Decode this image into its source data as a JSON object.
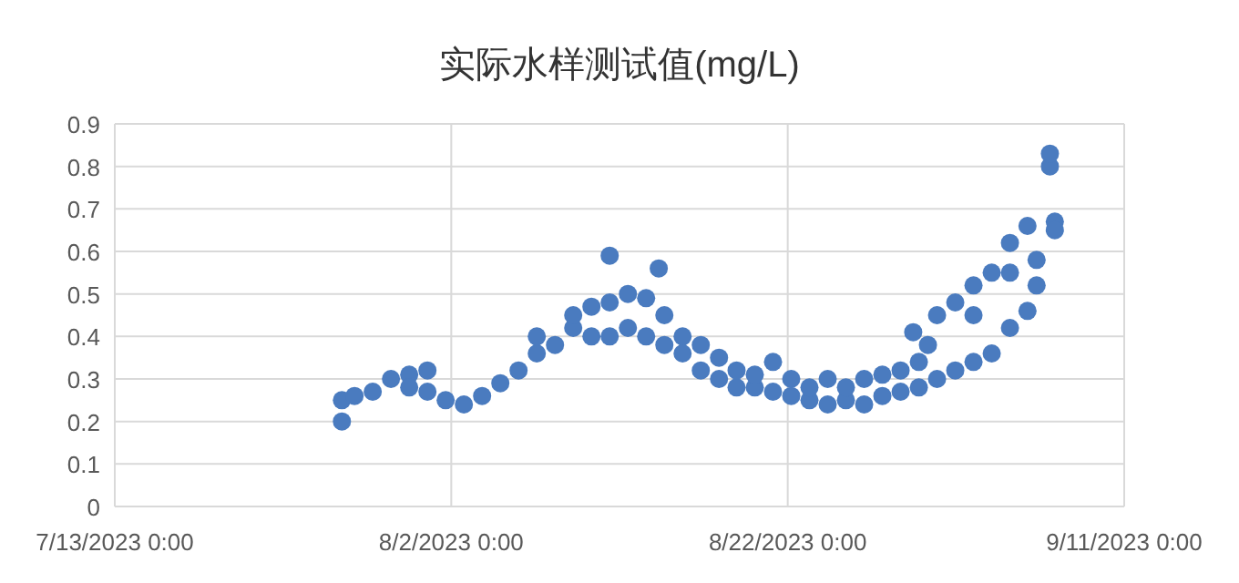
{
  "chart_data": {
    "type": "scatter",
    "title": "实际水样测试值(mg/L)",
    "x": [
      "2023-07-26T12:00",
      "2023-07-26T12:00",
      "2023-07-27T06:00",
      "2023-07-28T08:00",
      "2023-07-29T10:00",
      "2023-07-30T12:00",
      "2023-07-30T12:00",
      "2023-07-31T14:00",
      "2023-07-31T14:00",
      "2023-08-01T16:00",
      "2023-08-02T18:00",
      "2023-08-03T20:00",
      "2023-08-04T22:00",
      "2023-08-06T00:00",
      "2023-08-07T02:00",
      "2023-08-07T02:00",
      "2023-08-08T04:00",
      "2023-08-09T06:00",
      "2023-08-09T06:00",
      "2023-08-10T08:00",
      "2023-08-10T08:00",
      "2023-08-11T10:00",
      "2023-08-11T10:00",
      "2023-08-11T10:00",
      "2023-08-12T12:00",
      "2023-08-12T12:00",
      "2023-08-13T14:00",
      "2023-08-13T14:00",
      "2023-08-14T08:00",
      "2023-08-14T16:00",
      "2023-08-14T16:00",
      "2023-08-15T18:00",
      "2023-08-15T18:00",
      "2023-08-16T20:00",
      "2023-08-16T20:00",
      "2023-08-17T22:00",
      "2023-08-17T22:00",
      "2023-08-18T23:00",
      "2023-08-18T23:00",
      "2023-08-20T01:00",
      "2023-08-20T01:00",
      "2023-08-21T03:00",
      "2023-08-21T03:00",
      "2023-08-22T05:00",
      "2023-08-22T05:00",
      "2023-08-23T07:00",
      "2023-08-23T07:00",
      "2023-08-24T09:00",
      "2023-08-24T09:00",
      "2023-08-25T11:00",
      "2023-08-25T11:00",
      "2023-08-26T13:00",
      "2023-08-26T13:00",
      "2023-08-27T15:00",
      "2023-08-27T15:00",
      "2023-08-28T17:00",
      "2023-08-28T17:00",
      "2023-08-29T11:00",
      "2023-08-29T19:00",
      "2023-08-29T19:00",
      "2023-08-30T08:00",
      "2023-08-30T21:00",
      "2023-08-30T21:00",
      "2023-08-31T23:00",
      "2023-08-31T23:00",
      "2023-09-02T01:00",
      "2023-09-02T01:00",
      "2023-09-02T01:00",
      "2023-09-03T03:00",
      "2023-09-03T03:00",
      "2023-09-04T05:00",
      "2023-09-04T05:00",
      "2023-09-04T05:00",
      "2023-09-05T06:00",
      "2023-09-05T06:00",
      "2023-09-05T19:00",
      "2023-09-05T19:00",
      "2023-09-06T14:00",
      "2023-09-06T14:00",
      "2023-09-06T21:00",
      "2023-09-06T21:00"
    ],
    "series": [
      {
        "color": "#4a7bbf",
        "values": [
          0.2,
          0.25,
          0.26,
          0.27,
          0.3,
          0.31,
          0.28,
          0.32,
          0.27,
          0.25,
          0.24,
          0.26,
          0.29,
          0.32,
          0.36,
          0.4,
          0.38,
          0.42,
          0.45,
          0.47,
          0.4,
          0.59,
          0.48,
          0.4,
          0.5,
          0.42,
          0.49,
          0.4,
          0.56,
          0.45,
          0.38,
          0.4,
          0.36,
          0.32,
          0.38,
          0.3,
          0.35,
          0.28,
          0.32,
          0.28,
          0.31,
          0.27,
          0.34,
          0.26,
          0.3,
          0.25,
          0.28,
          0.24,
          0.3,
          0.25,
          0.28,
          0.24,
          0.3,
          0.26,
          0.31,
          0.27,
          0.32,
          0.41,
          0.28,
          0.34,
          0.38,
          0.3,
          0.45,
          0.32,
          0.48,
          0.34,
          0.52,
          0.45,
          0.36,
          0.55,
          0.42,
          0.62,
          0.55,
          0.46,
          0.66,
          0.52,
          0.58,
          0.8,
          0.83,
          0.67,
          0.65
        ]
      }
    ],
    "xlim": [
      "2023-07-13T00:00",
      "2023-09-11T00:00"
    ],
    "xticks": [
      {
        "value": "2023-07-13T00:00",
        "label": "7/13/2023 0:00"
      },
      {
        "value": "2023-08-02T00:00",
        "label": "8/2/2023 0:00"
      },
      {
        "value": "2023-08-22T00:00",
        "label": "8/22/2023 0:00"
      },
      {
        "value": "2023-09-11T00:00",
        "label": "9/11/2023 0:00"
      }
    ],
    "ylim": [
      0,
      0.9
    ],
    "yticks": [
      0,
      0.1,
      0.2,
      0.3,
      0.4,
      0.5,
      0.6,
      0.7,
      0.8,
      0.9
    ],
    "grid": true,
    "marker": "circle"
  }
}
